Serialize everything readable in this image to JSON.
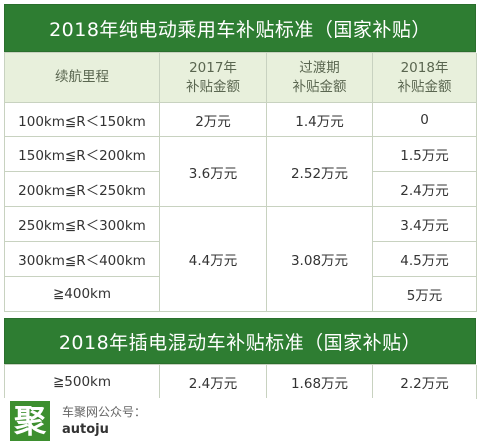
{
  "title_bev": "2018年纯电动乘用车补贴标准（国家补贴）",
  "title_phev": "2018年插电混动车补贴标准（国家补贴）",
  "header": {
    "range": "续航里程",
    "y2017_line1": "2017年",
    "y2017_line2": "补贴金额",
    "transition_line1": "过渡期",
    "transition_line2": "补贴金额",
    "y2018_line1": "2018年",
    "y2018_line2": "补贴金额"
  },
  "rows": {
    "r1": {
      "range": "100km≦R＜150km",
      "y2017": "2万元",
      "transition": "1.4万元",
      "y2018": "0"
    },
    "r2": {
      "range": "150km≦R＜200km",
      "y2018": "1.5万元"
    },
    "r3": {
      "range": "200km≦R＜250km",
      "y2018": "2.4万元"
    },
    "g23": {
      "y2017": "3.6万元",
      "transition": "2.52万元"
    },
    "r4": {
      "range": "250km≦R＜300km",
      "y2018": "3.4万元"
    },
    "r5": {
      "range": "300km≦R＜400km",
      "y2018": "4.5万元"
    },
    "r6": {
      "range": "≧400km",
      "y2018": "5万元"
    },
    "g456": {
      "y2017": "4.4万元",
      "transition": "3.08万元"
    }
  },
  "phev": {
    "range": "≧500km",
    "y2017": "2.4万元",
    "transition": "1.68万元",
    "y2018": "2.2万元"
  },
  "footer": {
    "logo_char": "聚",
    "label": "车聚网公众号：",
    "handle": "autoju"
  },
  "colors": {
    "banner": "#2e7d32",
    "header_bg": "#e8f0dc",
    "grid_line": "#c8d2c0"
  }
}
